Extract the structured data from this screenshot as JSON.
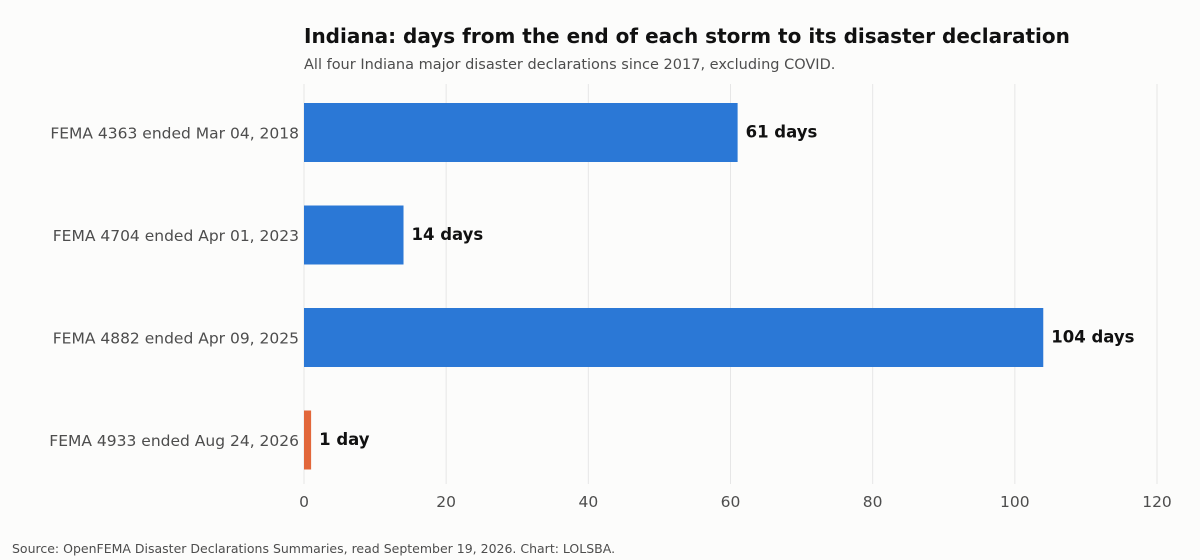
{
  "header": {
    "title": "Indiana: days from the end of each storm to its disaster declaration",
    "subtitle": "All four Indiana major disaster declarations since 2017, excluding COVID."
  },
  "footer": {
    "source": "Source: OpenFEMA Disaster Declarations Summaries, read September 19, 2026. Chart: LOLSBA."
  },
  "colors": {
    "primary_bar": "#2b78d6",
    "highlight_bar": "#e2673a"
  },
  "chart_data": {
    "type": "bar",
    "orientation": "horizontal",
    "title": "Indiana: days from the end of each storm to its disaster declaration",
    "subtitle": "All four Indiana major disaster declarations since 2017, excluding COVID.",
    "categories": [
      "FEMA 4363  ended Mar 04, 2018",
      "FEMA 4704  ended Apr 01, 2023",
      "FEMA 4882  ended Apr 09, 2025",
      "FEMA 4933  ended Aug 24, 2026"
    ],
    "values": [
      61,
      14,
      104,
      1
    ],
    "value_labels": [
      "61 days",
      "14 days",
      "104 days",
      "1 day"
    ],
    "highlight": [
      false,
      false,
      false,
      true
    ],
    "xlim": [
      0,
      120
    ],
    "xticks": [
      0,
      20,
      40,
      60,
      80,
      100,
      120
    ],
    "xtick_labels": [
      "0",
      "20",
      "40",
      "60",
      "80",
      "100",
      "120"
    ],
    "grid": "vertical",
    "legend": "none"
  }
}
